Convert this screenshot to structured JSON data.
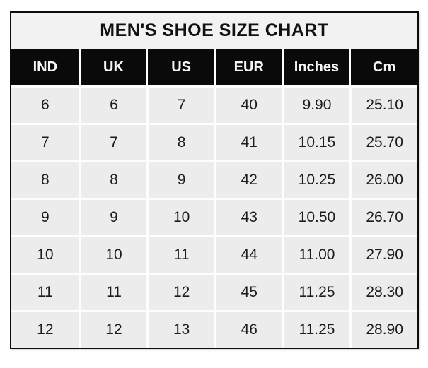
{
  "title": "MEN'S SHOE SIZE CHART",
  "colors": {
    "page_background": "#ffffff",
    "outer_border": "#0c0c0c",
    "title_background": "#f2f2f2",
    "header_background": "#0a0a0a",
    "header_text": "#f7f7f7",
    "cell_background": "#ececec",
    "cell_text": "#1c1c1c",
    "grid_separator": "#fdfdfd"
  },
  "chart_data": {
    "type": "table",
    "title": "MEN'S SHOE SIZE CHART",
    "legend_position": "none",
    "grid": "white separators between gray cells",
    "columns": [
      "IND",
      "UK",
      "US",
      "EUR",
      "Inches",
      "Cm"
    ],
    "rows": [
      [
        "6",
        "6",
        "7",
        "40",
        "9.90",
        "25.10"
      ],
      [
        "7",
        "7",
        "8",
        "41",
        "10.15",
        "25.70"
      ],
      [
        "8",
        "8",
        "9",
        "42",
        "10.25",
        "26.00"
      ],
      [
        "9",
        "9",
        "10",
        "43",
        "10.50",
        "26.70"
      ],
      [
        "10",
        "10",
        "11",
        "44",
        "11.00",
        "27.90"
      ],
      [
        "11",
        "11",
        "12",
        "45",
        "11.25",
        "28.30"
      ],
      [
        "12",
        "12",
        "13",
        "46",
        "11.25",
        "28.90"
      ]
    ]
  }
}
